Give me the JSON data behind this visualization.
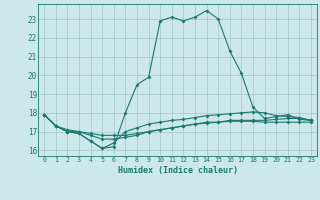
{
  "xlabel": "Humidex (Indice chaleur)",
  "background_color": "#cce8e8",
  "grid_color": "#aacccc",
  "line_color": "#1a7a6e",
  "xlim": [
    -0.5,
    23.5
  ],
  "ylim": [
    15.7,
    23.8
  ],
  "yticks": [
    16,
    17,
    18,
    19,
    20,
    21,
    22,
    23
  ],
  "xticks": [
    0,
    1,
    2,
    3,
    4,
    5,
    6,
    7,
    8,
    9,
    10,
    11,
    12,
    13,
    14,
    15,
    16,
    17,
    18,
    19,
    20,
    21,
    22,
    23
  ],
  "curve1_x": [
    0,
    1,
    2,
    3,
    4,
    5,
    6,
    7,
    8,
    9,
    10,
    11,
    12,
    13,
    14,
    15,
    16,
    17,
    18,
    19,
    20,
    21,
    22,
    23
  ],
  "curve1_y": [
    17.9,
    17.3,
    17.0,
    16.9,
    16.5,
    16.1,
    16.2,
    18.0,
    19.5,
    19.9,
    22.9,
    23.1,
    22.9,
    23.1,
    23.45,
    23.0,
    21.3,
    20.1,
    18.3,
    17.7,
    17.8,
    17.9,
    17.65,
    17.6
  ],
  "curve2_x": [
    0,
    1,
    2,
    3,
    4,
    5,
    6,
    7,
    8,
    9,
    10,
    11,
    12,
    13,
    14,
    15,
    16,
    17,
    18,
    19,
    20,
    21,
    22,
    23
  ],
  "curve2_y": [
    17.9,
    17.3,
    17.0,
    16.9,
    16.5,
    16.1,
    16.4,
    17.0,
    17.2,
    17.4,
    17.5,
    17.6,
    17.65,
    17.75,
    17.85,
    17.9,
    17.95,
    18.0,
    18.05,
    18.0,
    17.85,
    17.8,
    17.75,
    17.6
  ],
  "curve3_x": [
    0,
    1,
    2,
    3,
    4,
    5,
    6,
    7,
    8,
    9,
    10,
    11,
    12,
    13,
    14,
    15,
    16,
    17,
    18,
    19,
    20,
    21,
    22,
    23
  ],
  "curve3_y": [
    17.9,
    17.3,
    17.0,
    17.0,
    16.8,
    16.6,
    16.6,
    16.7,
    16.8,
    17.0,
    17.1,
    17.2,
    17.3,
    17.4,
    17.45,
    17.5,
    17.55,
    17.55,
    17.55,
    17.5,
    17.5,
    17.5,
    17.5,
    17.5
  ],
  "curve4_x": [
    0,
    1,
    2,
    3,
    4,
    5,
    6,
    7,
    8,
    9,
    10,
    11,
    12,
    13,
    14,
    15,
    16,
    17,
    18,
    19,
    20,
    21,
    22,
    23
  ],
  "curve4_y": [
    17.9,
    17.3,
    17.1,
    17.0,
    16.9,
    16.8,
    16.8,
    16.8,
    16.9,
    17.0,
    17.1,
    17.2,
    17.3,
    17.4,
    17.5,
    17.5,
    17.6,
    17.6,
    17.6,
    17.6,
    17.65,
    17.7,
    17.7,
    17.6
  ]
}
